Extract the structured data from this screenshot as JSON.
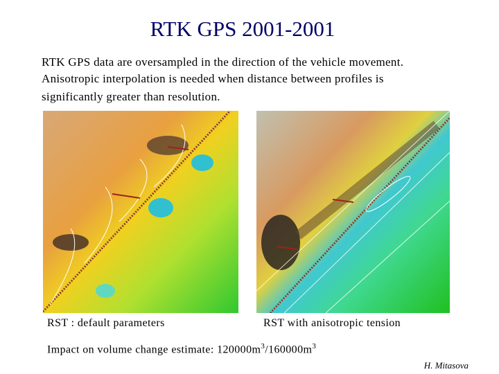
{
  "header": {
    "title": "RTK GPS 2001-2001"
  },
  "body": {
    "lines": [
      "RTK GPS data are oversampled in the direction of the vehicle movement.",
      "Anisotropic interpolation is needed when distance between profiles is",
      "significantly greater than resolution."
    ]
  },
  "figures": [
    {
      "caption": "RST : default parameters"
    },
    {
      "caption": "RST with anisotropic tension"
    }
  ],
  "impact": {
    "parts": [
      "Impact on volume change estimate: 120000m",
      "3",
      "/160000m",
      "3"
    ]
  },
  "footer": {
    "author": "H. Mitasova"
  }
}
